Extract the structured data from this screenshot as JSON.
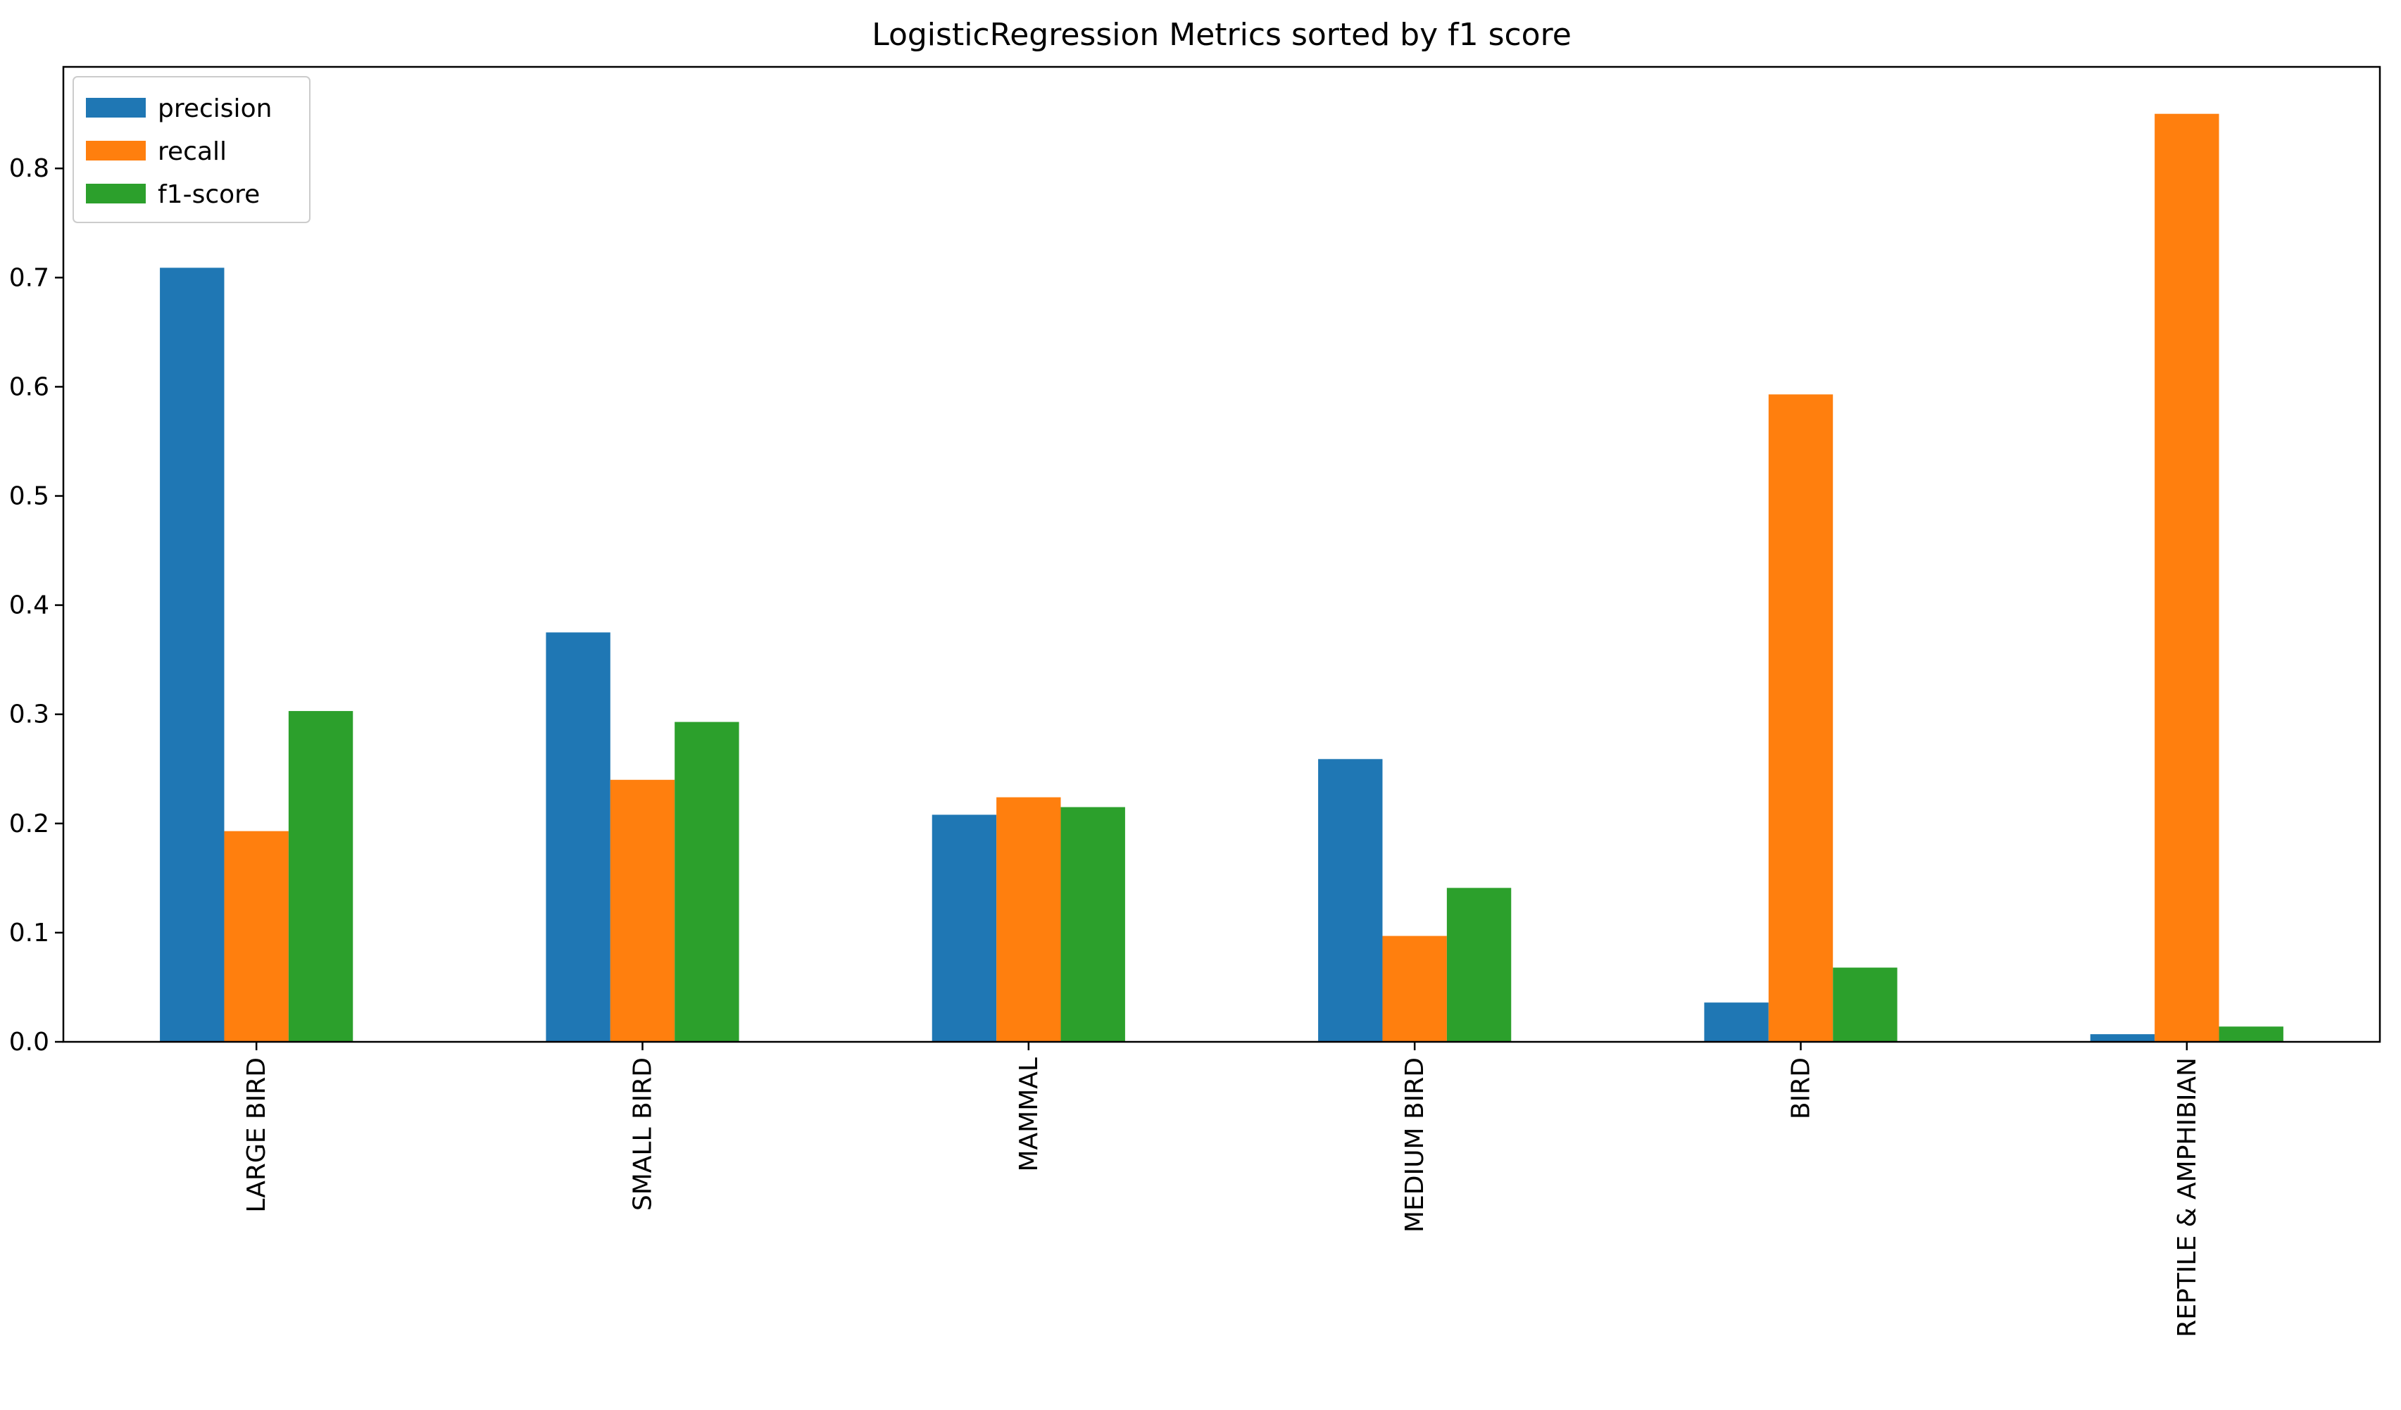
{
  "chart_data": {
    "type": "bar",
    "title": "LogisticRegression Metrics sorted by f1 score",
    "xlabel": "",
    "ylabel": "",
    "categories": [
      "LARGE BIRD",
      "SMALL BIRD",
      "MAMMAL",
      "MEDIUM BIRD",
      "BIRD",
      "REPTILE & AMPHIBIAN"
    ],
    "series": [
      {
        "name": "precision",
        "color": "#1f77b4",
        "values": [
          0.709,
          0.375,
          0.208,
          0.259,
          0.036,
          0.007
        ]
      },
      {
        "name": "recall",
        "color": "#ff7f0e",
        "values": [
          0.193,
          0.24,
          0.224,
          0.097,
          0.593,
          0.85
        ]
      },
      {
        "name": "f1-score",
        "color": "#2ca02c",
        "values": [
          0.303,
          0.293,
          0.215,
          0.141,
          0.068,
          0.014
        ]
      }
    ],
    "ylim": [
      0,
      0.893
    ],
    "yticks": [
      0.0,
      0.1,
      0.2,
      0.3,
      0.4,
      0.5,
      0.6,
      0.7,
      0.8
    ],
    "ytick_labels": [
      "0.0",
      "0.1",
      "0.2",
      "0.3",
      "0.4",
      "0.5",
      "0.6",
      "0.7",
      "0.8"
    ],
    "grid": false,
    "legend_position": "upper-left",
    "x_tick_rotation": "vertical"
  }
}
